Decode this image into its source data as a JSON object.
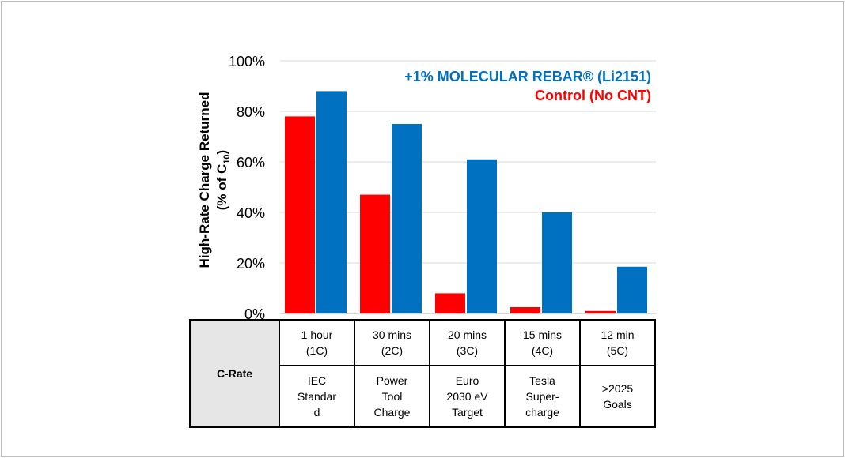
{
  "chart_data": {
    "type": "bar",
    "ylabel_line1": "High-Rate Charge Returned",
    "ylabel_line2_prefix": "(% of C",
    "ylabel_line2_sub": "10",
    "ylabel_line2_suffix": ")",
    "ylim": [
      0,
      100
    ],
    "yticks": [
      "0%",
      "20%",
      "40%",
      "60%",
      "80%",
      "100%"
    ],
    "ytick_values": [
      0,
      20,
      40,
      60,
      80,
      100
    ],
    "grid": true,
    "legend_position": "top-right",
    "categories": [
      "1 hour (1C)",
      "30 mins (2C)",
      "20 mins (3C)",
      "15 mins (4C)",
      "12 min (5C)"
    ],
    "series": [
      {
        "name": "Control (No CNT)",
        "color": "#ff0000",
        "values": [
          78,
          47,
          8,
          2.5,
          1
        ]
      },
      {
        "name": "+1% MOLECULAR REBAR® (Li2151)",
        "color": "#0070c0",
        "values": [
          88,
          75,
          61,
          40,
          18.5
        ]
      }
    ]
  },
  "table": {
    "header": "C-Rate",
    "rate_row": [
      [
        "1 hour",
        "(1C)"
      ],
      [
        "30 mins",
        "(2C)"
      ],
      [
        "20 mins",
        "(3C)"
      ],
      [
        "15 mins",
        "(4C)"
      ],
      [
        "12 min",
        "(5C)"
      ]
    ],
    "use_row": [
      [
        "IEC",
        "Standar",
        "d"
      ],
      [
        "Power",
        "Tool",
        "Charge"
      ],
      [
        "Euro",
        "2030 eV",
        "Target"
      ],
      [
        "Tesla",
        "Super-",
        "charge"
      ],
      [
        ">2025",
        "Goals"
      ]
    ]
  }
}
